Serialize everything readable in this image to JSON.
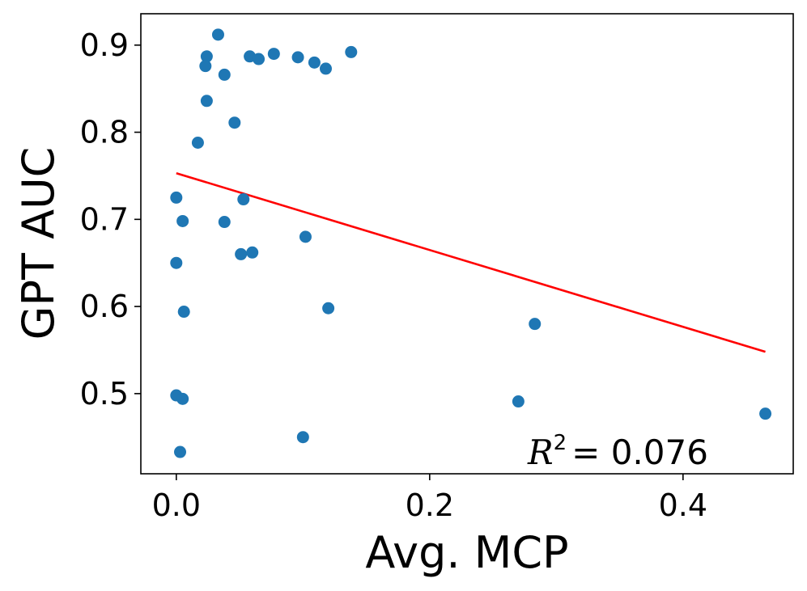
{
  "chart_data": {
    "type": "scatter",
    "title": "",
    "xlabel": "Avg. MCP",
    "ylabel": "GPT AUC",
    "xlim": [
      -0.028,
      0.487
    ],
    "ylim": [
      0.408,
      0.936
    ],
    "xticks": [
      0.0,
      0.2,
      0.4
    ],
    "xtick_labels": [
      "0.0",
      "0.2",
      "0.4"
    ],
    "yticks": [
      0.5,
      0.6,
      0.7,
      0.8,
      0.9
    ],
    "ytick_labels": [
      "0.5",
      "0.6",
      "0.7",
      "0.8",
      "0.9"
    ],
    "grid": false,
    "legend": null,
    "series": [
      {
        "name": "points",
        "color": "#1f77b4",
        "x": [
          0.0,
          0.0,
          0.005,
          0.006,
          0.0,
          0.005,
          0.003,
          0.033,
          0.024,
          0.023,
          0.024,
          0.038,
          0.046,
          0.017,
          0.058,
          0.065,
          0.077,
          0.096,
          0.109,
          0.118,
          0.138,
          0.053,
          0.038,
          0.051,
          0.06,
          0.102,
          0.12,
          0.1,
          0.283,
          0.27,
          0.465
        ],
        "y": [
          0.725,
          0.65,
          0.698,
          0.594,
          0.498,
          0.494,
          0.433,
          0.912,
          0.887,
          0.876,
          0.836,
          0.866,
          0.811,
          0.788,
          0.887,
          0.884,
          0.89,
          0.886,
          0.88,
          0.873,
          0.892,
          0.723,
          0.697,
          0.66,
          0.662,
          0.68,
          0.598,
          0.45,
          0.58,
          0.491,
          0.477
        ]
      }
    ],
    "fit_line": {
      "color": "#ff0000",
      "x": [
        0.0,
        0.465
      ],
      "y": [
        0.753,
        0.548
      ]
    },
    "annotations": [
      {
        "text": "= 0.076",
        "symbol": "R",
        "superscript": "2"
      }
    ]
  }
}
